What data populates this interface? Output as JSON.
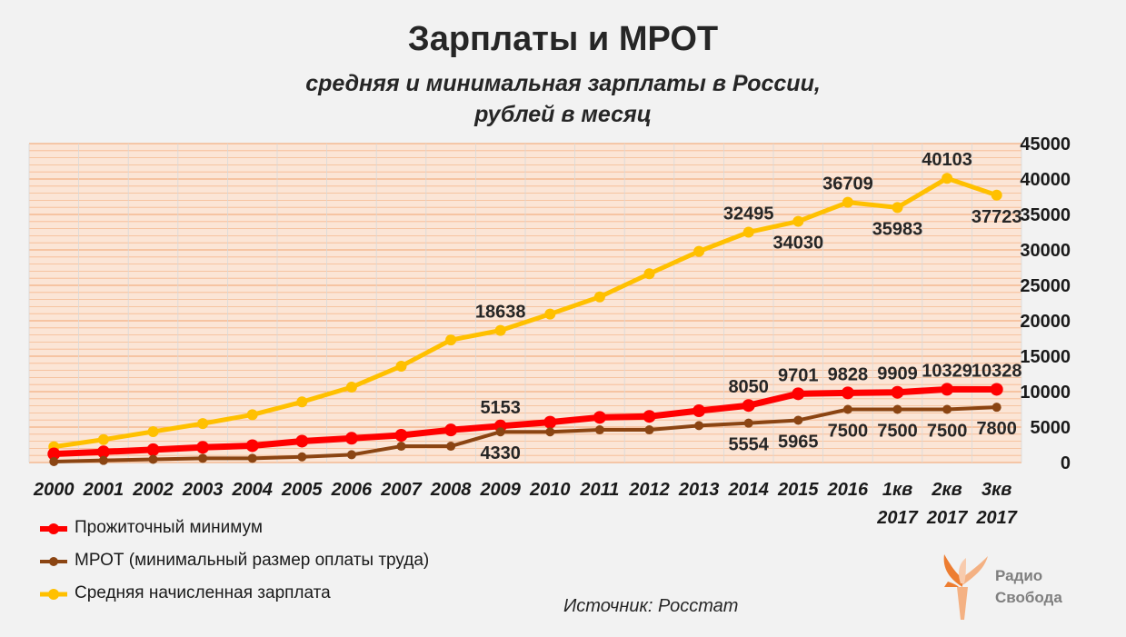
{
  "title": "Зарплаты и МРОТ",
  "subtitle_line1": "средняя и минимальная зарплаты в России,",
  "subtitle_line2": "рублей в месяц",
  "source": "Источник: Росстат",
  "logo": {
    "line1": "Радио",
    "line2": "Свобода"
  },
  "colors": {
    "living_wage": "#ff0000",
    "mrot": "#8b4513",
    "avg_salary": "#ffc000",
    "background": "#f2f2f2",
    "gridline": "#f4b183"
  },
  "chart_data": {
    "type": "line",
    "title": "Зарплаты и МРОТ",
    "categories": [
      [
        "2000"
      ],
      [
        "2001"
      ],
      [
        "2002"
      ],
      [
        "2003"
      ],
      [
        "2004"
      ],
      [
        "2005"
      ],
      [
        "2006"
      ],
      [
        "2007"
      ],
      [
        "2008"
      ],
      [
        "2009"
      ],
      [
        "2010"
      ],
      [
        "2011"
      ],
      [
        "2012"
      ],
      [
        "2013"
      ],
      [
        "2014"
      ],
      [
        "2015"
      ],
      [
        "2016"
      ],
      [
        "1кв",
        "2017"
      ],
      [
        "2кв",
        "2017"
      ],
      [
        "3кв",
        "2017"
      ]
    ],
    "ylim": [
      0,
      45000
    ],
    "yticks": [
      0,
      5000,
      10000,
      15000,
      20000,
      25000,
      30000,
      35000,
      40000,
      45000
    ],
    "y_axis_side": "right",
    "series": [
      {
        "key": "avg_salary",
        "name": "Средняя начисленная зарплата",
        "color": "#ffc000",
        "values": [
          2223,
          3240,
          4360,
          5499,
          6740,
          8555,
          10634,
          13593,
          17290,
          18638,
          20952,
          23369,
          26629,
          29792,
          32495,
          34030,
          36709,
          35983,
          40103,
          37723
        ],
        "labels": [
          {
            "index": 9,
            "text": "18638",
            "pos": "above"
          },
          {
            "index": 14,
            "text": "32495",
            "pos": "above"
          },
          {
            "index": 15,
            "text": "34030",
            "pos": "below"
          },
          {
            "index": 16,
            "text": "36709",
            "pos": "above"
          },
          {
            "index": 17,
            "text": "35983",
            "pos": "below"
          },
          {
            "index": 18,
            "text": "40103",
            "pos": "above"
          },
          {
            "index": 19,
            "text": "37723",
            "pos": "below"
          }
        ]
      },
      {
        "key": "living_wage",
        "name": "Прожиточный минимум",
        "color": "#ff0000",
        "values": [
          1210,
          1500,
          1808,
          2143,
          2376,
          3018,
          3422,
          3847,
          4593,
          5153,
          5688,
          6369,
          6510,
          7306,
          8050,
          9701,
          9828,
          9909,
          10329,
          10328
        ],
        "labels": [
          {
            "index": 9,
            "text": "5153",
            "pos": "above"
          },
          {
            "index": 14,
            "text": "8050",
            "pos": "above"
          },
          {
            "index": 15,
            "text": "9701",
            "pos": "above"
          },
          {
            "index": 16,
            "text": "9828",
            "pos": "above"
          },
          {
            "index": 17,
            "text": "9909",
            "pos": "above"
          },
          {
            "index": 18,
            "text": "10329",
            "pos": "above"
          },
          {
            "index": 19,
            "text": "10328",
            "pos": "above"
          }
        ]
      },
      {
        "key": "mrot",
        "name": "МРОТ (минимальный размер оплаты труда)",
        "color": "#8b4513",
        "values": [
          132,
          300,
          450,
          600,
          600,
          800,
          1100,
          2300,
          2300,
          4330,
          4330,
          4611,
          4611,
          5205,
          5554,
          5965,
          7500,
          7500,
          7500,
          7800
        ],
        "labels": [
          {
            "index": 9,
            "text": "4330",
            "pos": "below"
          },
          {
            "index": 14,
            "text": "5554",
            "pos": "below"
          },
          {
            "index": 15,
            "text": "5965",
            "pos": "below"
          },
          {
            "index": 16,
            "text": "7500",
            "pos": "below"
          },
          {
            "index": 17,
            "text": "7500",
            "pos": "below"
          },
          {
            "index": 18,
            "text": "7500",
            "pos": "below"
          },
          {
            "index": 19,
            "text": "7800",
            "pos": "below"
          }
        ]
      }
    ],
    "legend_order": [
      "living_wage",
      "mrot",
      "avg_salary"
    ],
    "legend_position": "bottom-left"
  }
}
